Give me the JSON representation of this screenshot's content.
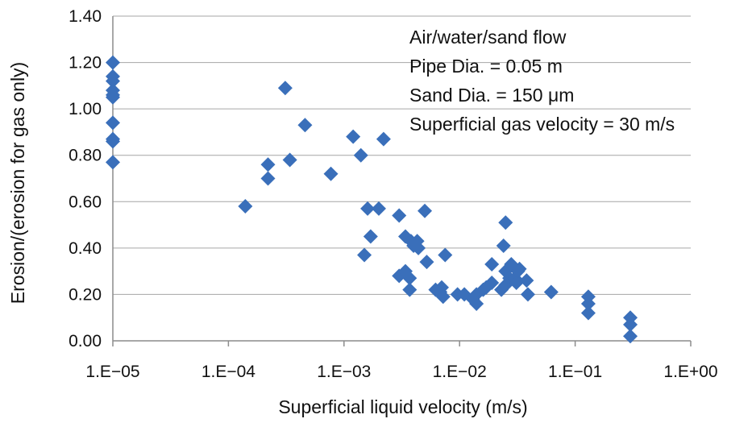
{
  "chart_data": {
    "type": "scatter",
    "title": "",
    "xlabel": "Superficial liquid velocity (m/s)",
    "ylabel": "Erosion/(erosion for gas only)",
    "x_scale": "log",
    "xlim": [
      1e-05,
      1
    ],
    "ylim": [
      0,
      1.4
    ],
    "x_ticks": [
      1e-05,
      0.0001,
      0.001,
      0.01,
      0.1,
      1
    ],
    "x_tick_labels": [
      "1.E−05",
      "1.E−04",
      "1.E−03",
      "1.E−02",
      "1.E−01",
      "1.E+00"
    ],
    "y_ticks": [
      0,
      0.2,
      0.4,
      0.6,
      0.8,
      1.0,
      1.2,
      1.4
    ],
    "y_tick_labels": [
      "0.00",
      "0.20",
      "0.40",
      "0.60",
      "0.80",
      "1.00",
      "1.20",
      "1.40"
    ],
    "grid": "horizontal",
    "marker": "diamond",
    "marker_color": "#3a6fba",
    "annotations": [
      "Air/water/sand flow",
      "Pipe Dia. = 0.05 m",
      "Sand Dia. = 150 μm",
      "Superficial gas velocity = 30 m/s"
    ],
    "points": [
      [
        1e-05,
        1.2
      ],
      [
        1e-05,
        1.14
      ],
      [
        1e-05,
        1.12
      ],
      [
        1e-05,
        1.08
      ],
      [
        1e-05,
        1.06
      ],
      [
        1e-05,
        1.05
      ],
      [
        1e-05,
        0.94
      ],
      [
        1e-05,
        0.87
      ],
      [
        1e-05,
        0.86
      ],
      [
        1e-05,
        0.77
      ],
      [
        0.00014,
        0.58
      ],
      [
        0.00022,
        0.76
      ],
      [
        0.00022,
        0.7
      ],
      [
        0.00031,
        1.09
      ],
      [
        0.00034,
        0.78
      ],
      [
        0.00046,
        0.93
      ],
      [
        0.00077,
        0.72
      ],
      [
        0.0012,
        0.88
      ],
      [
        0.0014,
        0.8
      ],
      [
        0.0015,
        0.37
      ],
      [
        0.0016,
        0.57
      ],
      [
        0.0017,
        0.45
      ],
      [
        0.002,
        0.57
      ],
      [
        0.0022,
        0.87
      ],
      [
        0.003,
        0.54
      ],
      [
        0.003,
        0.28
      ],
      [
        0.0034,
        0.3
      ],
      [
        0.0034,
        0.45
      ],
      [
        0.0037,
        0.27
      ],
      [
        0.0037,
        0.22
      ],
      [
        0.0038,
        0.43
      ],
      [
        0.004,
        0.41
      ],
      [
        0.0043,
        0.43
      ],
      [
        0.0044,
        0.4
      ],
      [
        0.005,
        0.56
      ],
      [
        0.0052,
        0.34
      ],
      [
        0.0062,
        0.22
      ],
      [
        0.0068,
        0.21
      ],
      [
        0.007,
        0.23
      ],
      [
        0.0072,
        0.19
      ],
      [
        0.0075,
        0.37
      ],
      [
        0.0096,
        0.2
      ],
      [
        0.011,
        0.2
      ],
      [
        0.013,
        0.18
      ],
      [
        0.014,
        0.2
      ],
      [
        0.014,
        0.16
      ],
      [
        0.016,
        0.22
      ],
      [
        0.017,
        0.23
      ],
      [
        0.019,
        0.25
      ],
      [
        0.019,
        0.33
      ],
      [
        0.023,
        0.22
      ],
      [
        0.024,
        0.41
      ],
      [
        0.025,
        0.51
      ],
      [
        0.025,
        0.3
      ],
      [
        0.025,
        0.24
      ],
      [
        0.027,
        0.27
      ],
      [
        0.028,
        0.33
      ],
      [
        0.03,
        0.27
      ],
      [
        0.031,
        0.25
      ],
      [
        0.032,
        0.3
      ],
      [
        0.033,
        0.31
      ],
      [
        0.038,
        0.26
      ],
      [
        0.039,
        0.2
      ],
      [
        0.062,
        0.21
      ],
      [
        0.13,
        0.19
      ],
      [
        0.13,
        0.16
      ],
      [
        0.13,
        0.12
      ],
      [
        0.3,
        0.1
      ],
      [
        0.3,
        0.07
      ],
      [
        0.3,
        0.02
      ]
    ]
  }
}
